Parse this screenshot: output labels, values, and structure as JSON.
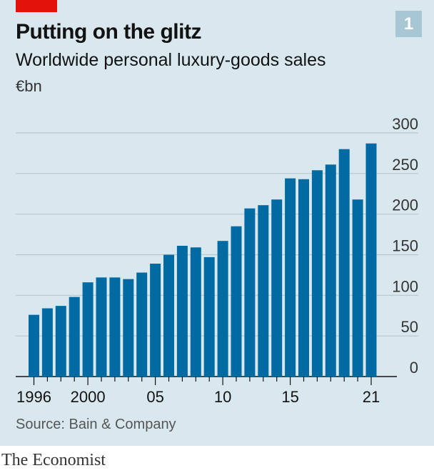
{
  "header": {
    "title": "Putting on the glitz",
    "subtitle": "Worldwide personal luxury-goods sales",
    "unit": "€bn",
    "chart_number": "1"
  },
  "footer": {
    "source": "Source: Bain & Company",
    "brand": "The Economist"
  },
  "colors": {
    "bar": "#006ba2",
    "background": "#d9e8ee",
    "gridline": "#b7c6cd",
    "accent": "#e3120b"
  },
  "chart_data": {
    "type": "bar",
    "title": "Putting on the glitz",
    "subtitle": "Worldwide personal luxury-goods sales",
    "ylabel": "€bn",
    "xlabel": "",
    "categories": [
      "1996",
      "1997",
      "1998",
      "1999",
      "2000",
      "2001",
      "2002",
      "2003",
      "2004",
      "2005",
      "2006",
      "2007",
      "2008",
      "2009",
      "2010",
      "2011",
      "2012",
      "2013",
      "2014",
      "2015",
      "2016",
      "2017",
      "2018",
      "2019",
      "2020",
      "2021"
    ],
    "values": [
      76,
      84,
      87,
      98,
      116,
      122,
      122,
      120,
      128,
      139,
      150,
      161,
      159,
      147,
      167,
      185,
      207,
      211,
      218,
      244,
      243,
      254,
      261,
      280,
      218,
      287
    ],
    "ylim": [
      0,
      300
    ],
    "yticks": [
      0,
      50,
      100,
      150,
      200,
      250,
      300
    ],
    "xtick_labels": [
      {
        "index": 0,
        "label": "1996"
      },
      {
        "index": 4,
        "label": "2000"
      },
      {
        "index": 9,
        "label": "05"
      },
      {
        "index": 14,
        "label": "10"
      },
      {
        "index": 19,
        "label": "15"
      },
      {
        "index": 25,
        "label": "21"
      }
    ],
    "grid": true,
    "yaxis_position": "right"
  }
}
